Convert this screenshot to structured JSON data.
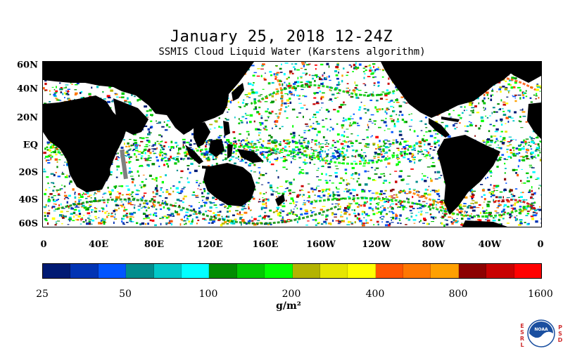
{
  "title": "January 25, 2018 12-24Z",
  "subtitle": "SSMIS Cloud Liquid Water (Karstens algorithm)",
  "map": {
    "lat_labels": [
      "60N",
      "40N",
      "20N",
      "EQ",
      "20S",
      "40S",
      "60S"
    ],
    "lon_labels": [
      "0",
      "40E",
      "80E",
      "120E",
      "160E",
      "160W",
      "120W",
      "80W",
      "40W",
      "0"
    ],
    "lat_range": [
      -60,
      60
    ],
    "lon_range": [
      0,
      360
    ],
    "background_color": "#ffffff",
    "land_color": "#000000"
  },
  "colorbar": {
    "colors": [
      "#001a73",
      "#0033b3",
      "#0055ff",
      "#008c8c",
      "#00c8c8",
      "#00ffff",
      "#008c00",
      "#00c800",
      "#00ff00",
      "#b3b300",
      "#e6e600",
      "#ffff00",
      "#ff5500",
      "#ff7700",
      "#ffa000",
      "#8c0000",
      "#c80000",
      "#ff0000"
    ],
    "tick_labels": [
      "25",
      "50",
      "100",
      "200",
      "400",
      "800",
      "1600"
    ],
    "units": "g/m²"
  },
  "logo": {
    "left_text": [
      "E",
      "S",
      "R",
      "L"
    ],
    "right_text": [
      "P",
      "S",
      "D"
    ],
    "center_text": "NOAA",
    "accent_color": "#1a4fa0"
  }
}
